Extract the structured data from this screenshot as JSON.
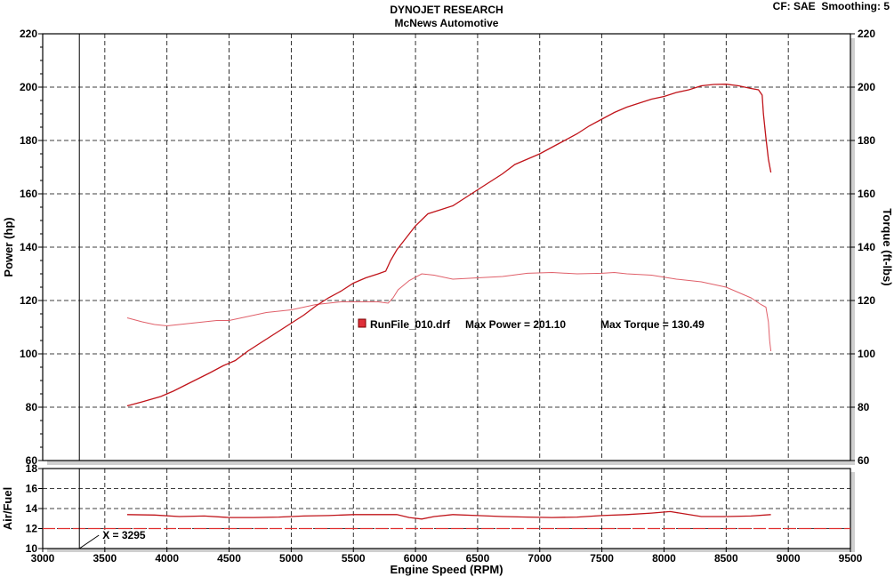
{
  "header": {
    "title": "DYNOJET RESEARCH",
    "subtitle": "McNews Automotive",
    "settings": "CF: SAE  Smoothing: 5"
  },
  "colors": {
    "trace": "#c0141a",
    "trace_light": "#e0606a",
    "afr_reference": "#e03030",
    "cursor": "#000000",
    "grid": "#000000"
  },
  "chart_data": [
    {
      "type": "line",
      "name": "power-torque",
      "xlabel": "Engine Speed (RPM)",
      "ylabel": "Power (hp)",
      "y2label": "Torque (ft-lbs)",
      "xlim": [
        3000,
        9500
      ],
      "ylim": [
        60,
        220
      ],
      "y2lim": [
        60,
        220
      ],
      "xticks": [
        3000,
        3500,
        4000,
        4500,
        5000,
        5500,
        6000,
        6500,
        7000,
        7500,
        8000,
        8500,
        9000,
        9500
      ],
      "yticks": [
        60,
        80,
        100,
        120,
        140,
        160,
        180,
        200,
        220
      ],
      "grid": true,
      "legend": {
        "run": "RunFile_010.drf",
        "max_power_label": "Max Power = 201.10",
        "max_torque_label": "Max Torque = 130.49"
      },
      "series": [
        {
          "key": "power",
          "x": [
            3680,
            3800,
            3950,
            4050,
            4200,
            4350,
            4450,
            4550,
            4650,
            4800,
            4900,
            5000,
            5100,
            5200,
            5300,
            5400,
            5500,
            5600,
            5700,
            5760,
            5800,
            5850,
            5900,
            6000,
            6100,
            6200,
            6300,
            6400,
            6500,
            6600,
            6700,
            6800,
            6900,
            7000,
            7100,
            7200,
            7300,
            7400,
            7500,
            7600,
            7700,
            7800,
            7900,
            8000,
            8100,
            8200,
            8300,
            8400,
            8500,
            8600,
            8700,
            8760,
            8790,
            8800,
            8820,
            8840,
            8860
          ],
          "y": [
            80.5,
            82,
            84,
            86,
            89.5,
            93,
            95.5,
            97.5,
            101,
            105.5,
            108.5,
            111.5,
            114.5,
            118,
            121,
            123.5,
            126.5,
            128.5,
            130,
            131,
            135,
            139,
            142,
            148,
            152.5,
            154,
            155.5,
            158.5,
            161.5,
            164.5,
            167.5,
            171,
            173,
            175,
            177.5,
            180,
            182.5,
            185.5,
            188,
            190.5,
            192.5,
            194,
            195.5,
            196.5,
            198,
            199,
            200.5,
            201,
            201.1,
            200.5,
            199.5,
            199,
            197,
            190,
            181,
            173,
            168
          ]
        },
        {
          "key": "torque",
          "x": [
            3680,
            3800,
            3900,
            4000,
            4100,
            4200,
            4300,
            4400,
            4500,
            4600,
            4700,
            4800,
            4900,
            5000,
            5100,
            5200,
            5300,
            5400,
            5500,
            5600,
            5700,
            5780,
            5820,
            5860,
            5950,
            6050,
            6150,
            6300,
            6500,
            6700,
            6900,
            7100,
            7300,
            7500,
            7600,
            7700,
            7900,
            8100,
            8300,
            8500,
            8700,
            8780,
            8820,
            8840,
            8850,
            8860
          ],
          "y": [
            113.5,
            112,
            111,
            110.5,
            111,
            111.5,
            112,
            112.5,
            112.5,
            113.5,
            114.5,
            115.5,
            116,
            116.5,
            117.5,
            118.5,
            119,
            119.5,
            119.5,
            119.5,
            119.5,
            119,
            121,
            124,
            127.5,
            130,
            129.5,
            128,
            128.5,
            129,
            130.2,
            130.49,
            130,
            130.2,
            130.49,
            130,
            129.5,
            128,
            127,
            125,
            121,
            118.5,
            117.5,
            112,
            105,
            101
          ]
        }
      ]
    },
    {
      "type": "line",
      "name": "air-fuel",
      "xlabel": "Engine Speed (RPM)",
      "ylabel": "Air/Fuel",
      "xlim": [
        3000,
        9500
      ],
      "ylim": [
        10,
        18
      ],
      "yticks": [
        10,
        12,
        14,
        16,
        18
      ],
      "xticks": [
        3000,
        3500,
        4000,
        4500,
        5000,
        5500,
        6000,
        6500,
        7000,
        7500,
        8000,
        8500,
        9000,
        9500
      ],
      "reference_afr": 12,
      "cursor": {
        "rpm": 3295,
        "label": "X = 3295"
      },
      "series": [
        {
          "key": "afr",
          "x": [
            3680,
            3900,
            4100,
            4300,
            4500,
            4700,
            4900,
            5100,
            5300,
            5500,
            5700,
            5850,
            5950,
            6050,
            6150,
            6300,
            6500,
            6700,
            6900,
            7100,
            7300,
            7500,
            7700,
            7900,
            8050,
            8150,
            8300,
            8500,
            8700,
            8860
          ],
          "y": [
            13.4,
            13.35,
            13.2,
            13.25,
            13.1,
            13.1,
            13.15,
            13.25,
            13.3,
            13.4,
            13.4,
            13.4,
            13.1,
            12.95,
            13.2,
            13.4,
            13.3,
            13.2,
            13.15,
            13.1,
            13.15,
            13.3,
            13.4,
            13.55,
            13.7,
            13.5,
            13.2,
            13.2,
            13.25,
            13.4
          ]
        }
      ]
    }
  ]
}
